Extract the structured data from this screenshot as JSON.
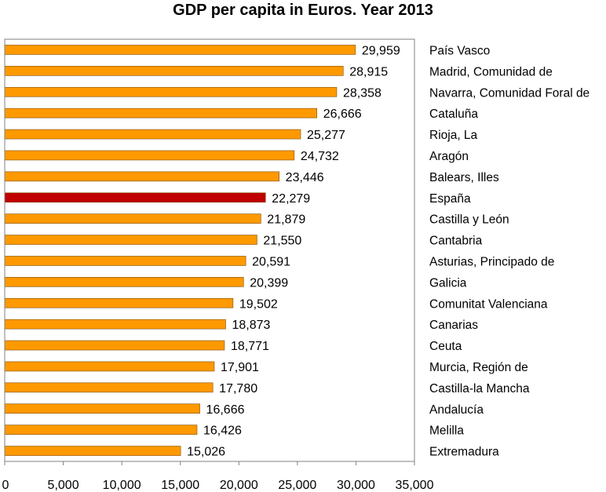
{
  "chart_data": {
    "type": "bar",
    "orientation": "horizontal",
    "title": "GDP per capita in Euros. Year 2013",
    "xlabel": "",
    "ylabel": "",
    "xlim": [
      0,
      35000
    ],
    "x_ticks": [
      "0",
      "5,000",
      "10,000",
      "15,000",
      "20,000",
      "25,000",
      "30,000",
      "35,000"
    ],
    "grid": false,
    "legend": "none",
    "categories": [
      "País Vasco",
      "Madrid, Comunidad de",
      "Navarra, Comunidad Foral de",
      "Cataluña",
      "Rioja, La",
      "Aragón",
      "Balears, Illes",
      "España",
      "Castilla y León",
      "Cantabria",
      "Asturias, Principado de",
      "Galicia",
      "Comunitat Valenciana",
      "Canarias",
      "Ceuta",
      "Murcia, Región de",
      "Castilla-la Mancha",
      "Andalucía",
      "Melilla",
      "Extremadura"
    ],
    "values": [
      29959,
      28915,
      28358,
      26666,
      25277,
      24732,
      23446,
      22279,
      21879,
      21550,
      20591,
      20399,
      19502,
      18873,
      18771,
      17901,
      17780,
      16666,
      16426,
      15026
    ],
    "value_labels": [
      "29,959",
      "28,915",
      "28,358",
      "26,666",
      "25,277",
      "24,732",
      "23,446",
      "22,279",
      "21,879",
      "21,550",
      "20,591",
      "20,399",
      "19,502",
      "18,873",
      "18,771",
      "17,901",
      "17,780",
      "16,666",
      "16,426",
      "15,026"
    ],
    "highlight": "España",
    "colors": {
      "bar": "#FF9900",
      "highlight": "#C00000",
      "bar_edge": "#7F4C00",
      "axis": "#808080"
    }
  }
}
